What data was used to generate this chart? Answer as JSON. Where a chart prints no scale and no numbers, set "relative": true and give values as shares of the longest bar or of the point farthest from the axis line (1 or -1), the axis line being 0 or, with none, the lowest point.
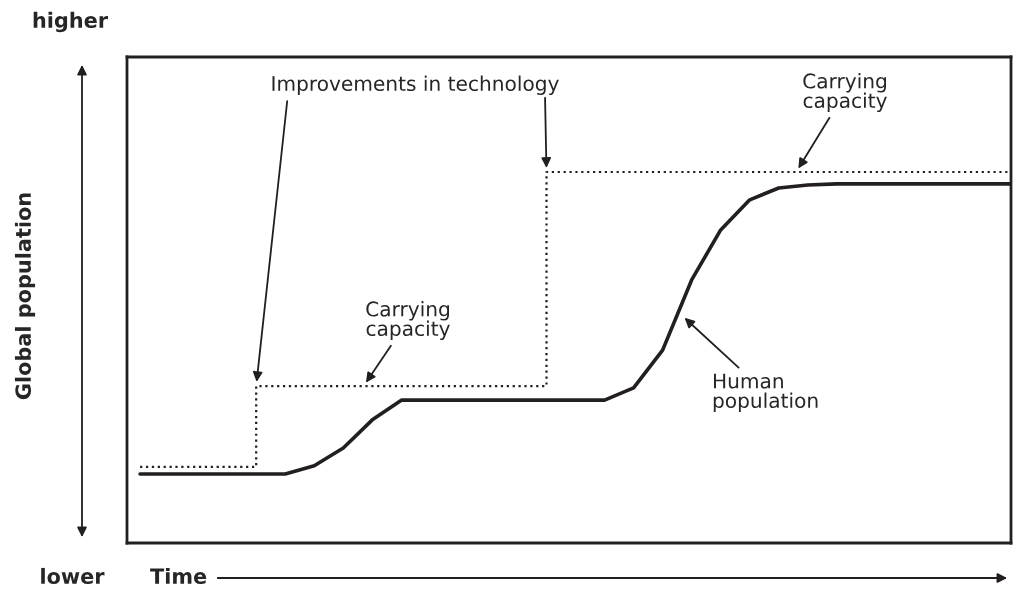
{
  "chart_data": {
    "type": "line",
    "relative": true,
    "ylabel": "Global population",
    "xlabel": "Time",
    "legend": false,
    "tick_labels": false,
    "categories": [
      null,
      null,
      null,
      null,
      null,
      null,
      null,
      null,
      null,
      null,
      null,
      null,
      null,
      null,
      null,
      null,
      null,
      null,
      null,
      null,
      null,
      null,
      null,
      null,
      null,
      null,
      null,
      null,
      null,
      null,
      null
    ],
    "series": [
      {
        "name": "Carrying\ncapacity",
        "type": "step",
        "line_style": "dotted",
        "color": "#231f20",
        "values": [
          0.205,
          0.205,
          0.205,
          0.205,
          0.423,
          0.423,
          0.423,
          0.423,
          0.423,
          0.423,
          0.423,
          0.423,
          0.423,
          0.423,
          1.0,
          1.0,
          1.0,
          1.0,
          1.0,
          1.0,
          1.0,
          1.0,
          1.0,
          1.0,
          1.0,
          1.0,
          1.0,
          1.0,
          1.0,
          1.0,
          1.0
        ]
      },
      {
        "name": "Human\npopulation",
        "line_style": "solid",
        "color": "#231f20",
        "values": [
          0.186,
          0.186,
          0.186,
          0.186,
          0.186,
          0.186,
          0.208,
          0.256,
          0.332,
          0.385,
          0.385,
          0.385,
          0.385,
          0.385,
          0.385,
          0.385,
          0.385,
          0.418,
          0.52,
          0.709,
          0.844,
          0.925,
          0.957,
          0.965,
          0.968,
          0.968,
          0.968,
          0.968,
          0.968,
          0.968,
          0.968
        ]
      }
    ],
    "annotations": [
      "Improvements in technology",
      "Carrying\ncapacity",
      "higher",
      "lower"
    ]
  }
}
